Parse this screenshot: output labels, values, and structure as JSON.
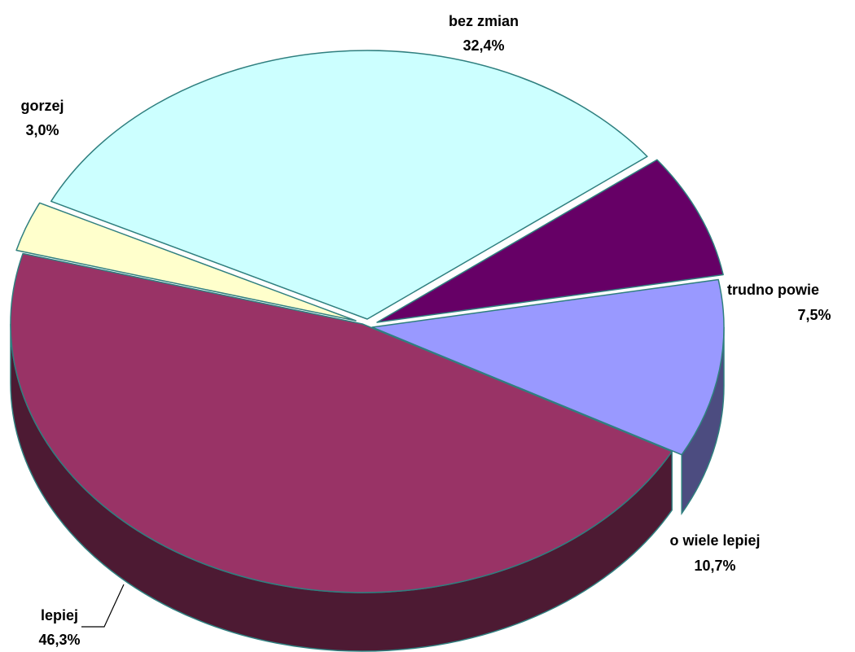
{
  "chart_data": {
    "type": "pie",
    "title": "",
    "legend": "none",
    "slices": [
      {
        "label": "bez zmian",
        "value_label": "32,4%",
        "value": 32.4,
        "color": "#ccffff",
        "side_color": "#5f8c8c"
      },
      {
        "label": "trudno powie",
        "value_label": "7,5%",
        "value": 7.5,
        "color": "#660066",
        "side_color": "#330033"
      },
      {
        "label": "o wiele lepiej",
        "value_label": "10,7%",
        "value": 10.7,
        "color": "#9999ff",
        "side_color": "#4c4c80"
      },
      {
        "label": "lepiej",
        "value_label": "46,3%",
        "value": 46.3,
        "color": "#993366",
        "side_color": "#4d1a33"
      },
      {
        "label": "gorzej",
        "value_label": "3,0%",
        "value": 3.0,
        "color": "#ffffcc",
        "side_color": "#7f7f66"
      }
    ]
  }
}
